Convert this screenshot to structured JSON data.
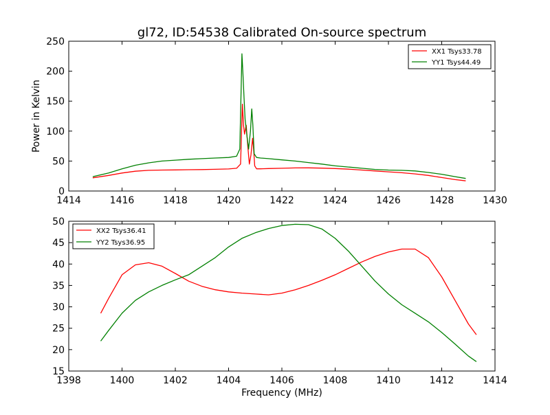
{
  "chart_data": [
    {
      "type": "line",
      "title": "gl72, ID:54538 Calibrated On-source spectrum",
      "xlabel": "",
      "ylabel": "Power in Kelvin",
      "xlim": [
        1414,
        1430
      ],
      "ylim": [
        0,
        250
      ],
      "xticks": [
        "1414",
        "1416",
        "1418",
        "1420",
        "1422",
        "1424",
        "1426",
        "1428",
        "1430"
      ],
      "yticks": [
        "0",
        "50",
        "100",
        "150",
        "200",
        "250"
      ],
      "legend_position": "top-right",
      "grid": false,
      "series": [
        {
          "name": "XX1 Tsys33.78",
          "color": "#ff0000",
          "x": [
            1414.9,
            1415.5,
            1416.0,
            1416.5,
            1417.0,
            1417.5,
            1418.0,
            1418.5,
            1419.0,
            1419.5,
            1420.0,
            1420.3,
            1420.45,
            1420.52,
            1420.56,
            1420.6,
            1420.66,
            1420.72,
            1420.78,
            1420.84,
            1420.9,
            1420.94,
            1420.98,
            1421.05,
            1421.2,
            1421.5,
            1422.0,
            1422.5,
            1423.0,
            1423.5,
            1424.0,
            1424.5,
            1425.0,
            1425.5,
            1426.0,
            1426.5,
            1427.0,
            1427.5,
            1428.0,
            1428.5,
            1428.9
          ],
          "y": [
            22,
            26,
            30,
            33,
            34.5,
            35,
            35.2,
            35.5,
            35.8,
            36.2,
            36.8,
            38,
            45,
            145,
            110,
            95,
            110,
            75,
            45,
            60,
            88,
            70,
            42,
            37,
            37,
            37.5,
            38,
            38.5,
            38.6,
            38.2,
            37.5,
            36.5,
            35,
            33.5,
            32,
            30.5,
            28.5,
            26,
            22.5,
            19,
            17
          ]
        },
        {
          "name": "YY1 Tsys44.49",
          "color": "#008000",
          "x": [
            1414.9,
            1415.5,
            1416.0,
            1416.5,
            1417.0,
            1417.5,
            1418.0,
            1418.5,
            1419.0,
            1419.5,
            1420.0,
            1420.3,
            1420.42,
            1420.5,
            1420.54,
            1420.58,
            1420.62,
            1420.68,
            1420.75,
            1420.82,
            1420.87,
            1420.91,
            1420.96,
            1421.05,
            1421.2,
            1421.5,
            1422.0,
            1422.5,
            1423.0,
            1423.5,
            1424.0,
            1424.5,
            1425.0,
            1425.5,
            1426.0,
            1426.5,
            1427.0,
            1427.5,
            1428.0,
            1428.5,
            1428.9
          ],
          "y": [
            24,
            30,
            37,
            43,
            47,
            50,
            51.5,
            53,
            54,
            55,
            56,
            58,
            70,
            229,
            195,
            155,
            120,
            95,
            70,
            100,
            137,
            110,
            62,
            56,
            55,
            54,
            52,
            50,
            47.5,
            45,
            42,
            40,
            38,
            36,
            35,
            34.5,
            33.5,
            31,
            28,
            24,
            21
          ]
        }
      ]
    },
    {
      "type": "line",
      "title": "",
      "xlabel": "Frequency (MHz)",
      "ylabel": "",
      "xlim": [
        1398,
        1414
      ],
      "ylim": [
        15,
        50
      ],
      "xticks": [
        "1398",
        "1400",
        "1402",
        "1404",
        "1406",
        "1408",
        "1410",
        "1412",
        "1414"
      ],
      "yticks": [
        "15",
        "20",
        "25",
        "30",
        "35",
        "40",
        "45",
        "50"
      ],
      "legend_position": "top-left",
      "grid": false,
      "series": [
        {
          "name": "XX2 Tsys36.41",
          "color": "#ff0000",
          "x": [
            1399.2,
            1399.5,
            1400.0,
            1400.5,
            1401.0,
            1401.5,
            1402.0,
            1402.5,
            1403.0,
            1403.5,
            1404.0,
            1404.5,
            1405.0,
            1405.5,
            1406.0,
            1406.5,
            1407.0,
            1407.5,
            1408.0,
            1408.5,
            1409.0,
            1409.5,
            1410.0,
            1410.5,
            1411.0,
            1411.5,
            1412.0,
            1412.5,
            1413.0,
            1413.3
          ],
          "y": [
            28.5,
            32,
            37.5,
            39.8,
            40.3,
            39.5,
            37.8,
            36,
            34.8,
            34,
            33.5,
            33.2,
            33,
            32.8,
            33.2,
            34,
            35,
            36.2,
            37.5,
            39,
            40.5,
            41.8,
            42.8,
            43.5,
            43.5,
            41.5,
            37,
            31.5,
            26,
            23.5
          ]
        },
        {
          "name": "YY2 Tsys36.95",
          "color": "#008000",
          "x": [
            1399.2,
            1399.5,
            1400.0,
            1400.5,
            1401.0,
            1401.5,
            1402.0,
            1402.5,
            1403.0,
            1403.5,
            1404.0,
            1404.5,
            1405.0,
            1405.5,
            1406.0,
            1406.5,
            1407.0,
            1407.5,
            1408.0,
            1408.5,
            1409.0,
            1409.5,
            1410.0,
            1410.5,
            1411.0,
            1411.5,
            1412.0,
            1412.5,
            1413.0,
            1413.3
          ],
          "y": [
            22,
            24.5,
            28.5,
            31.5,
            33.5,
            35,
            36.3,
            37.5,
            39.5,
            41.5,
            44,
            46,
            47.3,
            48.3,
            49,
            49.3,
            49.2,
            48.2,
            46,
            43,
            39.5,
            36,
            33,
            30.5,
            28.5,
            26.5,
            24,
            21.3,
            18.5,
            17.2
          ]
        }
      ]
    }
  ]
}
